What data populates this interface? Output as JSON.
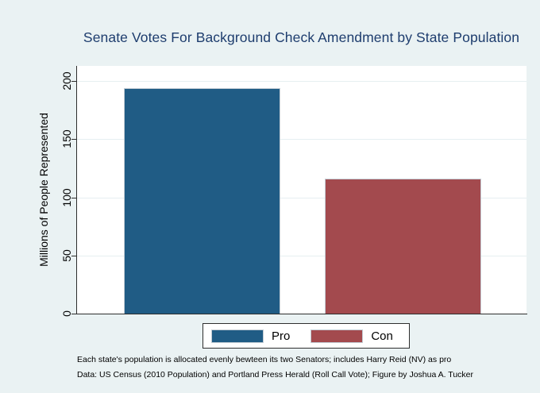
{
  "chart_data": {
    "type": "bar",
    "title": "Senate Votes For Background Check Amendment by State Population",
    "xlabel": "",
    "ylabel": "Millions of People Represented",
    "categories": [
      "Pro",
      "Con"
    ],
    "values": [
      194,
      116
    ],
    "bar_colors": [
      "#205c85",
      "#a34a4e"
    ],
    "ylim": [
      0,
      213
    ],
    "yticks": [
      0,
      50,
      100,
      150,
      200
    ],
    "grid": true,
    "legend_position": "bottom-center",
    "notes": [
      "Each state's population is allocated evenly bewteen its two Senators; includes Harry Reid (NV) as pro",
      "Data: US Census (2010 Population) and Portland Press Herald (Roll Call Vote); Figure by Joshua A. Tucker"
    ]
  },
  "colors": {
    "figure_background": "#eaf2f3",
    "plot_background": "#ffffff",
    "gridline": "#e6eff1",
    "axis": "#2e2e2e",
    "title_text": "#1e3d6e",
    "bar_border": "#c3ccd4",
    "text": "#000000"
  }
}
